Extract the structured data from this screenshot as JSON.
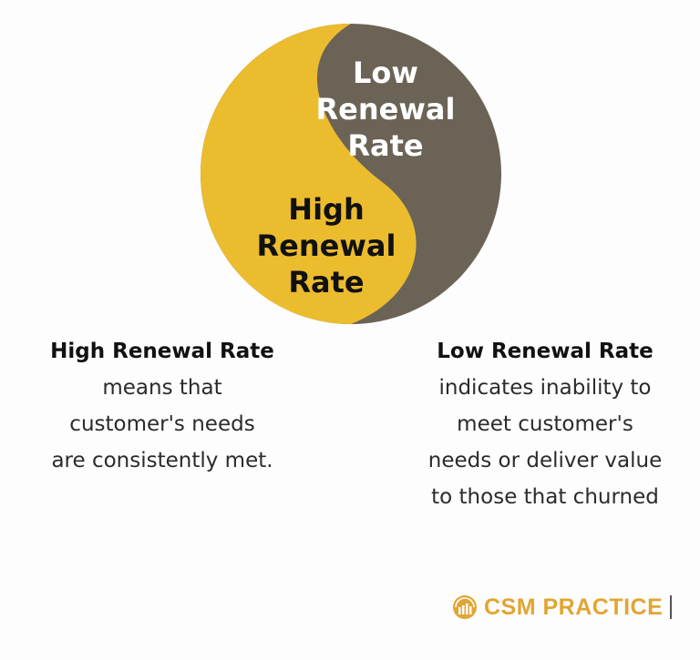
{
  "diagram": {
    "colors": {
      "high": "#ecbc2f",
      "low": "#6b6356",
      "high_text": "#111111",
      "low_text": "#ffffff"
    },
    "low_label": [
      "Low",
      "Renewal",
      "Rate"
    ],
    "high_label": [
      "High",
      "Renewal",
      "Rate"
    ]
  },
  "descriptions": {
    "high": {
      "title": "High Renewal  Rate",
      "lines": [
        "means that",
        "customer's needs",
        "are consistently met."
      ]
    },
    "low": {
      "title": "Low Renewal Rate",
      "lines": [
        "indicates inability to",
        "meet customer's",
        "needs or deliver value",
        "to those that churned"
      ]
    }
  },
  "brand": {
    "name": "CSM PRACTICE",
    "logo_icon": "bar-chart-circle-icon",
    "color": "#e2a533"
  }
}
